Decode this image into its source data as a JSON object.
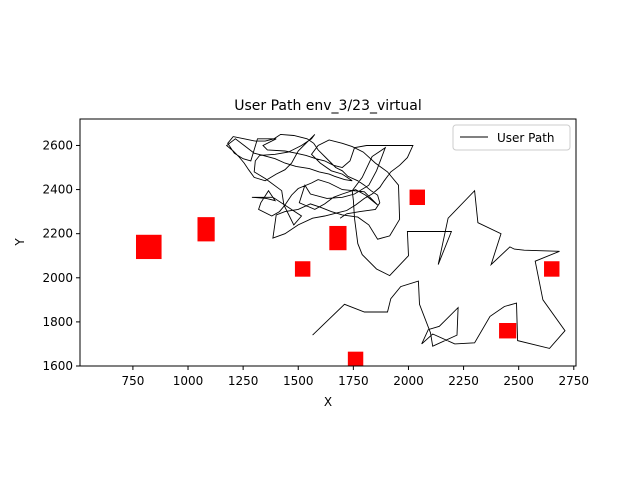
{
  "chart_data": {
    "type": "line",
    "title": "User Path env_3/23_virtual",
    "xlabel": "X",
    "ylabel": "Y",
    "xlim": [
      510,
      2760
    ],
    "ylim": [
      1600,
      2720
    ],
    "xticks": [
      750,
      1000,
      1250,
      1500,
      1750,
      2000,
      2250,
      2500,
      2750
    ],
    "yticks": [
      1600,
      1800,
      2000,
      2200,
      2400,
      2600
    ],
    "grid": false,
    "legend": {
      "position": "top-right",
      "entries": [
        "User Path"
      ]
    },
    "colors": {
      "path": "#000000",
      "obstacles": "#ff0000"
    },
    "series": [
      {
        "name": "User Path",
        "points": [
          [
            1565,
            1740
          ],
          [
            1710,
            1880
          ],
          [
            1800,
            1845
          ],
          [
            1905,
            1845
          ],
          [
            1920,
            1905
          ],
          [
            1965,
            1960
          ],
          [
            2045,
            1985
          ],
          [
            2050,
            1880
          ],
          [
            2100,
            1750
          ],
          [
            2110,
            1690
          ],
          [
            2220,
            1740
          ],
          [
            2225,
            1865
          ],
          [
            2140,
            1780
          ],
          [
            2090,
            1765
          ],
          [
            2060,
            1700
          ],
          [
            2110,
            1745
          ],
          [
            2210,
            1700
          ],
          [
            2300,
            1705
          ],
          [
            2370,
            1825
          ],
          [
            2435,
            1870
          ],
          [
            2490,
            1885
          ],
          [
            2495,
            1715
          ],
          [
            2640,
            1680
          ],
          [
            2710,
            1760
          ],
          [
            2610,
            1900
          ],
          [
            2575,
            2075
          ],
          [
            2685,
            2120
          ],
          [
            2525,
            2125
          ],
          [
            2480,
            2130
          ],
          [
            2460,
            2140
          ],
          [
            2375,
            2060
          ],
          [
            2420,
            2200
          ],
          [
            2315,
            2250
          ],
          [
            2300,
            2395
          ],
          [
            2180,
            2270
          ],
          [
            2135,
            2060
          ],
          [
            2195,
            2210
          ],
          [
            1995,
            2210
          ],
          [
            2000,
            2100
          ],
          [
            1915,
            2010
          ],
          [
            1855,
            2040
          ],
          [
            1790,
            2105
          ],
          [
            1770,
            2155
          ],
          [
            1755,
            2270
          ],
          [
            1750,
            2350
          ],
          [
            1745,
            2395
          ],
          [
            1790,
            2455
          ],
          [
            1835,
            2550
          ],
          [
            1895,
            2590
          ],
          [
            1855,
            2485
          ],
          [
            1820,
            2420
          ],
          [
            1755,
            2380
          ],
          [
            1700,
            2365
          ],
          [
            1630,
            2360
          ],
          [
            1555,
            2380
          ],
          [
            1530,
            2420
          ],
          [
            1505,
            2340
          ],
          [
            1575,
            2310
          ],
          [
            1620,
            2335
          ],
          [
            1660,
            2365
          ],
          [
            1700,
            2380
          ],
          [
            1760,
            2400
          ],
          [
            1805,
            2375
          ],
          [
            1860,
            2330
          ],
          [
            1800,
            2390
          ],
          [
            1700,
            2400
          ],
          [
            1640,
            2430
          ],
          [
            1590,
            2445
          ],
          [
            1560,
            2430
          ],
          [
            1500,
            2405
          ],
          [
            1470,
            2375
          ],
          [
            1440,
            2330
          ],
          [
            1415,
            2300
          ],
          [
            1380,
            2280
          ],
          [
            1320,
            2310
          ],
          [
            1330,
            2340
          ],
          [
            1365,
            2395
          ],
          [
            1395,
            2350
          ],
          [
            1355,
            2360
          ],
          [
            1290,
            2365
          ],
          [
            1385,
            2365
          ],
          [
            1515,
            2280
          ],
          [
            1480,
            2240
          ],
          [
            1435,
            2330
          ],
          [
            1425,
            2395
          ],
          [
            1350,
            2450
          ],
          [
            1300,
            2480
          ],
          [
            1305,
            2530
          ],
          [
            1325,
            2555
          ],
          [
            1395,
            2560
          ],
          [
            1455,
            2570
          ],
          [
            1515,
            2600
          ],
          [
            1560,
            2630
          ],
          [
            1575,
            2650
          ],
          [
            1500,
            2575
          ],
          [
            1470,
            2520
          ],
          [
            1440,
            2490
          ],
          [
            1400,
            2470
          ],
          [
            1350,
            2440
          ],
          [
            1300,
            2455
          ],
          [
            1275,
            2490
          ],
          [
            1255,
            2520
          ],
          [
            1230,
            2550
          ],
          [
            1205,
            2575
          ],
          [
            1175,
            2600
          ],
          [
            1215,
            2630
          ],
          [
            1255,
            2600
          ],
          [
            1300,
            2565
          ],
          [
            1340,
            2555
          ],
          [
            1395,
            2540
          ],
          [
            1440,
            2520
          ],
          [
            1490,
            2505
          ],
          [
            1550,
            2495
          ],
          [
            1595,
            2480
          ],
          [
            1640,
            2470
          ],
          [
            1665,
            2460
          ],
          [
            1710,
            2445
          ],
          [
            1745,
            2440
          ],
          [
            1700,
            2470
          ],
          [
            1650,
            2485
          ],
          [
            1600,
            2520
          ],
          [
            1560,
            2560
          ],
          [
            1590,
            2600
          ],
          [
            1640,
            2625
          ],
          [
            1700,
            2610
          ],
          [
            1745,
            2595
          ],
          [
            1795,
            2570
          ],
          [
            1850,
            2520
          ],
          [
            1905,
            2480
          ],
          [
            1955,
            2420
          ],
          [
            1960,
            2265
          ],
          [
            1915,
            2190
          ],
          [
            1860,
            2175
          ],
          [
            1820,
            2240
          ],
          [
            1770,
            2275
          ],
          [
            1700,
            2285
          ],
          [
            1650,
            2300
          ],
          [
            1600,
            2320
          ],
          [
            1555,
            2335
          ],
          [
            1500,
            2310
          ],
          [
            1440,
            2300
          ],
          [
            1400,
            2285
          ],
          [
            1385,
            2180
          ],
          [
            1440,
            2200
          ],
          [
            1500,
            2240
          ],
          [
            1565,
            2270
          ],
          [
            1620,
            2280
          ],
          [
            1680,
            2295
          ],
          [
            1720,
            2305
          ],
          [
            1760,
            2330
          ],
          [
            1800,
            2360
          ],
          [
            1835,
            2380
          ],
          [
            1870,
            2410
          ],
          [
            1890,
            2440
          ],
          [
            1920,
            2480
          ],
          [
            1960,
            2510
          ],
          [
            1995,
            2545
          ],
          [
            2020,
            2600
          ],
          [
            1810,
            2600
          ],
          [
            1755,
            2590
          ],
          [
            1735,
            2530
          ],
          [
            1700,
            2500
          ],
          [
            1660,
            2510
          ],
          [
            1620,
            2530
          ],
          [
            1580,
            2540
          ],
          [
            1535,
            2555
          ],
          [
            1490,
            2565
          ],
          [
            1440,
            2575
          ],
          [
            1360,
            2580
          ],
          [
            1340,
            2600
          ],
          [
            1400,
            2630
          ],
          [
            1315,
            2630
          ],
          [
            1285,
            2530
          ],
          [
            1250,
            2540
          ],
          [
            1210,
            2565
          ],
          [
            1180,
            2610
          ],
          [
            1205,
            2640
          ],
          [
            1255,
            2630
          ],
          [
            1305,
            2620
          ],
          [
            1350,
            2620
          ],
          [
            1390,
            2630
          ],
          [
            1420,
            2650
          ],
          [
            1480,
            2645
          ],
          [
            1540,
            2630
          ],
          [
            1570,
            2610
          ],
          [
            1590,
            2580
          ],
          [
            1620,
            2550
          ],
          [
            1645,
            2525
          ],
          [
            1670,
            2500
          ],
          [
            1700,
            2485
          ],
          [
            1725,
            2460
          ],
          [
            1770,
            2440
          ],
          [
            1800,
            2420
          ],
          [
            1830,
            2395
          ],
          [
            1860,
            2375
          ],
          [
            1870,
            2340
          ],
          [
            1850,
            2310
          ],
          [
            1780,
            2300
          ],
          [
            1720,
            2290
          ],
          [
            1690,
            2270
          ]
        ]
      }
    ],
    "obstacles": [
      {
        "x": 822,
        "y": 2140,
        "w": 116,
        "h": 110
      },
      {
        "x": 1082,
        "y": 2220,
        "w": 78,
        "h": 110
      },
      {
        "x": 1680,
        "y": 2180,
        "w": 78,
        "h": 110
      },
      {
        "x": 1520,
        "y": 2040,
        "w": 70,
        "h": 70
      },
      {
        "x": 2040,
        "y": 2365,
        "w": 70,
        "h": 70
      },
      {
        "x": 1760,
        "y": 1630,
        "w": 70,
        "h": 70
      },
      {
        "x": 2450,
        "y": 1760,
        "w": 78,
        "h": 70
      },
      {
        "x": 2650,
        "y": 2040,
        "w": 70,
        "h": 70
      }
    ]
  }
}
